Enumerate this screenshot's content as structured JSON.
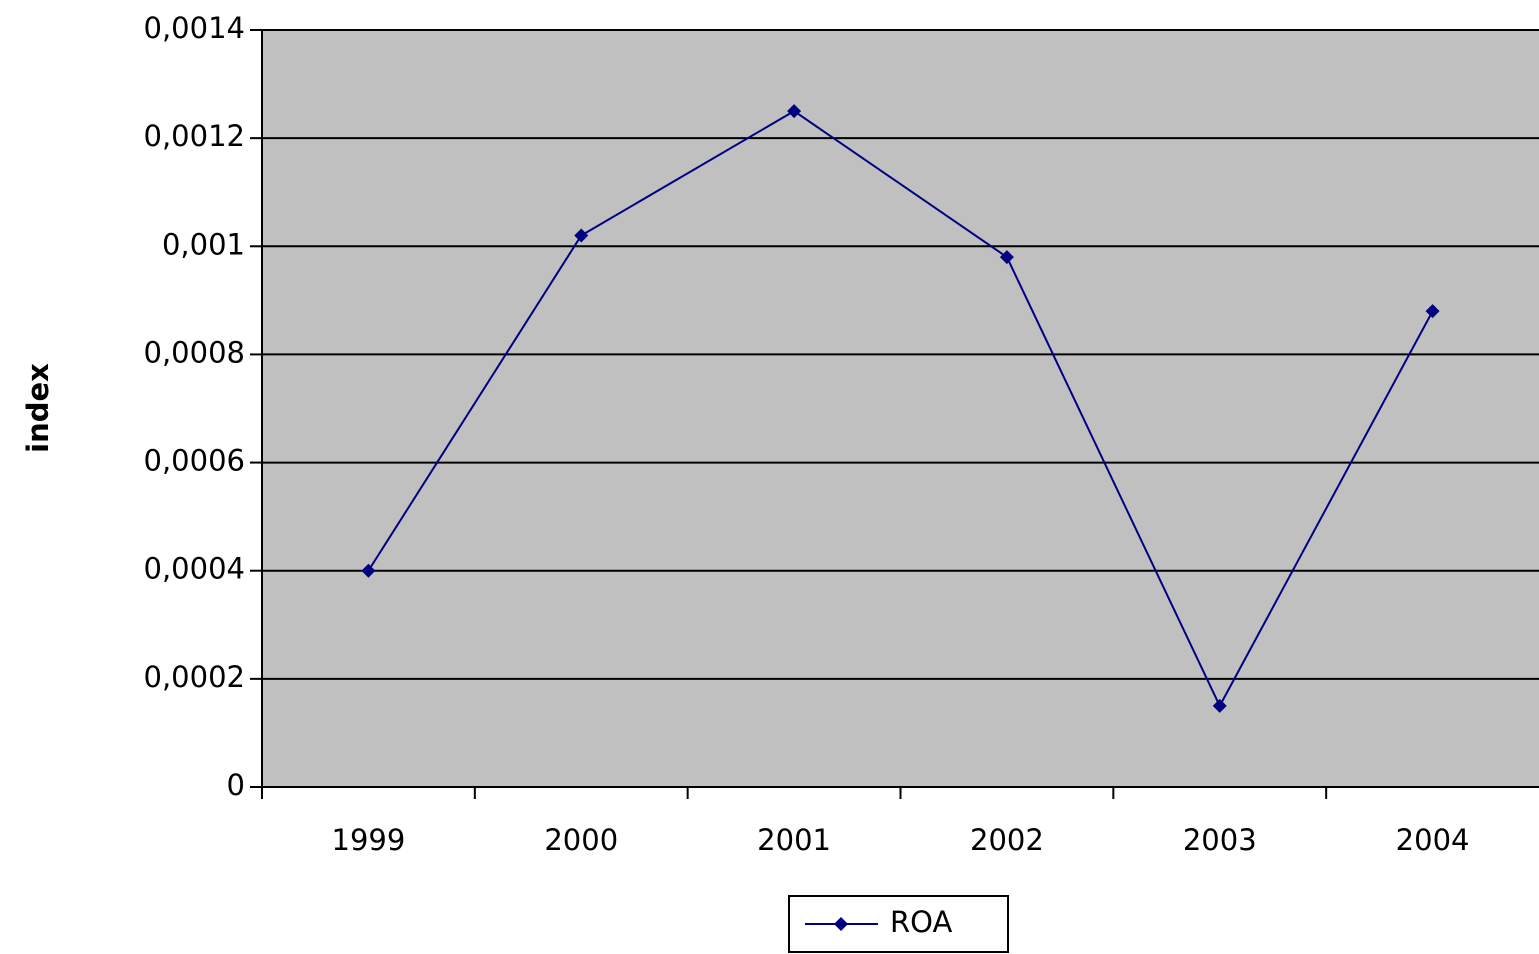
{
  "chart_data": {
    "type": "line",
    "y_label": "index",
    "categories": [
      "1999",
      "2000",
      "2001",
      "2002",
      "2003",
      "2004"
    ],
    "series": [
      {
        "name": "ROA",
        "color": "#000080",
        "values": [
          0.0004,
          0.00102,
          0.00125,
          0.00098,
          0.00015,
          0.00088
        ]
      }
    ],
    "ylim": [
      0,
      0.0014
    ],
    "yticks": [
      0,
      {
        "value": 0.0002,
        "label": "0,0002"
      },
      {
        "value": 0.0004,
        "label": "0,0004"
      },
      {
        "value": 0.0006,
        "label": "0,0006"
      },
      {
        "value": 0.0008,
        "label": "0,0008"
      },
      {
        "value": 0.001,
        "label": "0,001"
      },
      {
        "value": 0.0012,
        "label": "0,0012"
      },
      {
        "value": 0.0014,
        "label": "0,0014"
      }
    ],
    "grid": true,
    "legend": "bottom",
    "plot_background": "#c0c0c0"
  }
}
